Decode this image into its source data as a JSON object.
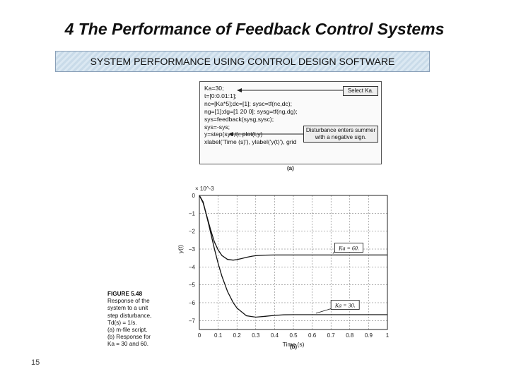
{
  "slide": {
    "title": "4 The Performance of  Feedback Control Systems",
    "banner": "SYSTEM PERFORMANCE USING CONTROL DESIGN SOFTWARE",
    "page_number": "15"
  },
  "figure": {
    "code_lines": [
      "Ka=30;",
      "t=[0:0.01:1];",
      "nc=[Ka*5];dc=[1]; sysc=tf(nc,dc);",
      "ng=[1];dg=[1 20 0]; sysg=tf(ng,dg);",
      "sys=feedback(sysg,sysc);",
      "sys=-sys;",
      "y=step(sys,t); plot(t,y)",
      "xlabel('Time (s)'), ylabel('y(t)'), grid"
    ],
    "callout_select": "Select Ka.",
    "callout_disturbance_line1": "Disturbance enters summer",
    "callout_disturbance_line2": "with a negative sign.",
    "label_a": "(a)",
    "label_b": "(b)",
    "caption_heading": "FIGURE 5.48",
    "caption_lines": [
      "Response of the",
      "system to a unit",
      "step disturbance,",
      "Td(s) = 1/s.",
      "(a) m-file script.",
      "(b) Response for",
      "Ka = 30 and 60."
    ]
  },
  "chart_data": {
    "type": "line",
    "xlabel": "Time (s)",
    "ylabel": "y(t)",
    "y_multiplier": "× 10^-3",
    "xlim": [
      0,
      1
    ],
    "ylim": [
      -7.5,
      0
    ],
    "x_ticks": [
      "0",
      "0.1",
      "0.2",
      "0.3",
      "0.4",
      "0.5",
      "0.6",
      "0.7",
      "0.8",
      "0.9",
      "1"
    ],
    "y_ticks": [
      "0",
      "−1",
      "−2",
      "−3",
      "−4",
      "−5",
      "−6",
      "−7"
    ],
    "grid": true,
    "series": [
      {
        "name": "Ka = 60.",
        "x": [
          0,
          0.02,
          0.04,
          0.06,
          0.08,
          0.1,
          0.12,
          0.15,
          0.18,
          0.2,
          0.22,
          0.25,
          0.28,
          0.3,
          0.35,
          0.4,
          0.5,
          0.6,
          0.7,
          0.8,
          0.9,
          1.0
        ],
        "y": [
          0,
          -0.42,
          -1.16,
          -1.93,
          -2.6,
          -3.05,
          -3.36,
          -3.58,
          -3.62,
          -3.59,
          -3.54,
          -3.46,
          -3.4,
          -3.37,
          -3.34,
          -3.33,
          -3.33,
          -3.33,
          -3.33,
          -3.33,
          -3.33,
          -3.33
        ]
      },
      {
        "name": "Ka = 30.",
        "x": [
          0,
          0.02,
          0.05,
          0.08,
          0.1,
          0.12,
          0.15,
          0.18,
          0.2,
          0.25,
          0.3,
          0.35,
          0.4,
          0.45,
          0.5,
          0.6,
          0.7,
          0.8,
          0.9,
          1.0
        ],
        "y": [
          0,
          -0.36,
          -1.63,
          -2.99,
          -3.81,
          -4.52,
          -5.38,
          -6.0,
          -6.3,
          -6.73,
          -6.81,
          -6.76,
          -6.71,
          -6.68,
          -6.67,
          -6.67,
          -6.67,
          -6.67,
          -6.67,
          -6.67
        ]
      }
    ],
    "annotations": [
      "Ka = 60.",
      "Ka = 30."
    ]
  }
}
